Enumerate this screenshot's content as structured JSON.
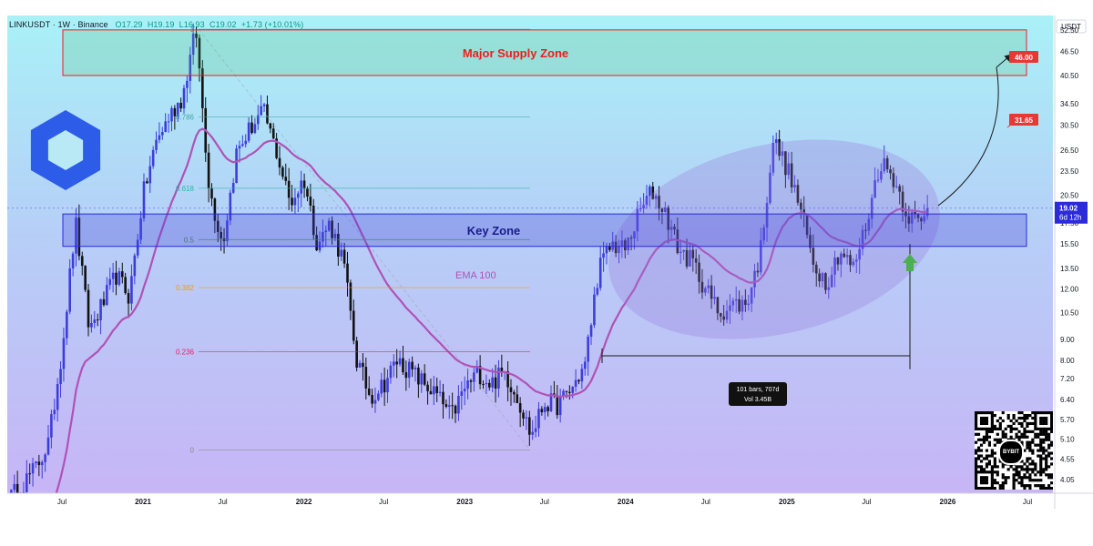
{
  "header": {
    "symbol": "LINKUSDT · 1W · Binance",
    "open": "O17.29",
    "high": "H19.19",
    "low": "L16.93",
    "close": "C19.02",
    "change": "+1.73 (+10.01%)"
  },
  "chart_data": {
    "type": "candlestick",
    "currency_label": "USDT",
    "price_axis_ticks": [
      52.5,
      46.5,
      40.5,
      34.5,
      30.5,
      26.5,
      23.5,
      20.5,
      17.5,
      15.5,
      13.5,
      12.0,
      10.5,
      9.0,
      8.0,
      7.2,
      6.4,
      5.7,
      5.1,
      4.55,
      4.05
    ],
    "time_axis_ticks": [
      {
        "label": "Jul",
        "date": "2020-07"
      },
      {
        "label": "2021",
        "date": "2021-01"
      },
      {
        "label": "Jul",
        "date": "2021-07"
      },
      {
        "label": "2022",
        "date": "2022-01"
      },
      {
        "label": "Jul",
        "date": "2022-07"
      },
      {
        "label": "2023",
        "date": "2023-01"
      },
      {
        "label": "Jul",
        "date": "2023-07"
      },
      {
        "label": "2024",
        "date": "2024-01"
      },
      {
        "label": "Jul",
        "date": "2024-07"
      },
      {
        "label": "2025",
        "date": "2025-01"
      },
      {
        "label": "Jul",
        "date": "2025-07"
      },
      {
        "label": "2026",
        "date": "2026-01"
      },
      {
        "label": "Jul",
        "date": "2026-07"
      }
    ],
    "price_path": [
      [
        "2020-03",
        3.6
      ],
      [
        "2020-05",
        4.3
      ],
      [
        "2020-06",
        5.0
      ],
      [
        "2020-07",
        8.5
      ],
      [
        "2020-08",
        17.5
      ],
      [
        "2020-09",
        9.5
      ],
      [
        "2020-10",
        11.0
      ],
      [
        "2020-11",
        13.0
      ],
      [
        "2020-12",
        11.5
      ],
      [
        "2021-01",
        20.5
      ],
      [
        "2021-02",
        28.0
      ],
      [
        "2021-03",
        32.0
      ],
      [
        "2021-04",
        36.0
      ],
      [
        "2021-05",
        52.7
      ],
      [
        "2021-06",
        21.0
      ],
      [
        "2021-07",
        15.5
      ],
      [
        "2021-08",
        26.0
      ],
      [
        "2021-09",
        30.0
      ],
      [
        "2021-10",
        33.0
      ],
      [
        "2021-11",
        26.0
      ],
      [
        "2021-12",
        19.5
      ],
      [
        "2022-01",
        22.5
      ],
      [
        "2022-02",
        15.5
      ],
      [
        "2022-03",
        17.5
      ],
      [
        "2022-04",
        14.0
      ],
      [
        "2022-05",
        8.0
      ],
      [
        "2022-06",
        6.5
      ],
      [
        "2022-07",
        7.0
      ],
      [
        "2022-08",
        8.0
      ],
      [
        "2022-09",
        7.5
      ],
      [
        "2022-10",
        7.0
      ],
      [
        "2022-11",
        6.5
      ],
      [
        "2022-12",
        5.8
      ],
      [
        "2023-01",
        6.8
      ],
      [
        "2023-02",
        7.5
      ],
      [
        "2023-03",
        7.0
      ],
      [
        "2023-04",
        7.5
      ],
      [
        "2023-05",
        6.5
      ],
      [
        "2023-06",
        5.2
      ],
      [
        "2023-07",
        6.3
      ],
      [
        "2023-08",
        6.2
      ],
      [
        "2023-09",
        6.8
      ],
      [
        "2023-10",
        7.8
      ],
      [
        "2023-11",
        13.5
      ],
      [
        "2023-12",
        15.5
      ],
      [
        "2024-01",
        15.0
      ],
      [
        "2024-02",
        18.5
      ],
      [
        "2024-03",
        21.0
      ],
      [
        "2024-04",
        18.5
      ],
      [
        "2024-05",
        15.0
      ],
      [
        "2024-06",
        14.0
      ],
      [
        "2024-07",
        12.0
      ],
      [
        "2024-08",
        10.5
      ],
      [
        "2024-09",
        11.0
      ],
      [
        "2024-10",
        11.0
      ],
      [
        "2024-11",
        14.5
      ],
      [
        "2024-12",
        28.0
      ],
      [
        "2025-01",
        24.0
      ],
      [
        "2025-02",
        19.0
      ],
      [
        "2025-03",
        14.0
      ],
      [
        "2025-04",
        12.5
      ],
      [
        "2025-05",
        15.0
      ],
      [
        "2025-06",
        13.5
      ],
      [
        "2025-07",
        17.5
      ],
      [
        "2025-08",
        25.0
      ],
      [
        "2025-09",
        22.5
      ],
      [
        "2025-10",
        18.5
      ],
      [
        "2025-11",
        17.3
      ],
      [
        "2025-11-20",
        19.02
      ]
    ],
    "last_price": "19.02",
    "countdown": "6d 12h",
    "ema": {
      "label": "EMA 100",
      "color": "#b052b6"
    },
    "zones": [
      {
        "label": "Major Supply Zone",
        "low": 40.5,
        "high": 52.5,
        "color": "#ef1c1c"
      },
      {
        "label": "Key Zone",
        "low": 15.3,
        "high": 18.4,
        "color": "#2b2bd9"
      }
    ],
    "fib_levels": [
      {
        "label": "1",
        "price": 52.7
      },
      {
        "label": "0.786",
        "price": 32.0
      },
      {
        "label": "0.618",
        "price": 21.3
      },
      {
        "label": "0.5",
        "price": 15.9
      },
      {
        "label": "0.382",
        "price": 12.1
      },
      {
        "label": "0.236",
        "price": 8.4
      },
      {
        "label": "0",
        "price": 4.8
      }
    ],
    "targets": [
      {
        "label": "46.00",
        "price": 46.0
      },
      {
        "label": "31.65",
        "price": 31.65
      }
    ],
    "measure": {
      "bars": "101 bars, 707d",
      "volume": "Vol 3.45B"
    }
  },
  "logo": {
    "name": "chainlink-logo",
    "color": "#2d5ce8"
  },
  "qr": {
    "badge": "BYBIT"
  }
}
